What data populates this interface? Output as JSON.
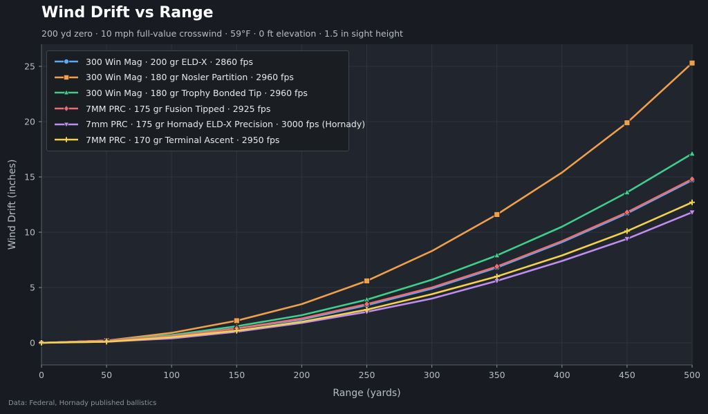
{
  "header": {
    "title": "Wind Drift vs Range",
    "subtitle": "200 yd zero  ·  10 mph full-value crosswind  ·  59°F  ·  0 ft elevation  ·  1.5 in sight height"
  },
  "footer": {
    "source": "Data: Federal, Hornady published ballistics"
  },
  "colors": {
    "background": "#181b21",
    "plot_background": "#21252d",
    "grid": "#2f343d",
    "axis_text": "#b7bcc6"
  },
  "chart_data": {
    "type": "line",
    "title": "Wind Drift vs Range",
    "xlabel": "Range (yards)",
    "ylabel": "Wind Drift (inches)",
    "xlim": [
      0,
      500
    ],
    "ylim": [
      -2,
      27
    ],
    "xticks": [
      0,
      50,
      100,
      150,
      200,
      250,
      300,
      350,
      400,
      450,
      500
    ],
    "yticks": [
      0,
      5,
      10,
      15,
      20,
      25
    ],
    "grid": true,
    "legend_position": "top-left",
    "x": [
      0,
      50,
      100,
      150,
      200,
      250,
      300,
      350,
      400,
      450,
      500
    ],
    "series": [
      {
        "name": "300 Win Mag · 200 gr ELD-X · 2860 fps",
        "color": "#5aa9f5",
        "marker": "circle",
        "values": [
          0,
          0.2,
          0.6,
          1.3,
          2.1,
          3.4,
          4.9,
          6.8,
          9.1,
          11.7,
          14.7
        ]
      },
      {
        "name": "300 Win Mag · 180 gr Nosler Partition · 2960 fps",
        "color": "#f0a04b",
        "marker": "square",
        "values": [
          0,
          0.2,
          0.9,
          2.0,
          3.5,
          5.6,
          8.3,
          11.6,
          15.4,
          19.9,
          25.3
        ]
      },
      {
        "name": "300 Win Mag · 180 gr Trophy Bonded Tip · 2960 fps",
        "color": "#3ecf8e",
        "marker": "triangle",
        "values": [
          0,
          0.2,
          0.7,
          1.5,
          2.5,
          3.9,
          5.7,
          7.9,
          10.5,
          13.6,
          17.1
        ]
      },
      {
        "name": "7MM PRC · 175 gr Fusion Tipped · 2925 fps",
        "color": "#ea6f73",
        "marker": "diamond",
        "values": [
          0,
          0.2,
          0.6,
          1.3,
          2.2,
          3.5,
          5.0,
          6.9,
          9.2,
          11.8,
          14.8
        ]
      },
      {
        "name": "7mm PRC · 175 gr Hornady ELD-X Precision · 3000 fps (Hornady)",
        "color": "#c08ef0",
        "marker": "triangle-down",
        "values": [
          0,
          0.1,
          0.4,
          1.0,
          1.8,
          2.8,
          4.0,
          5.6,
          7.4,
          9.4,
          11.8
        ]
      },
      {
        "name": "7MM PRC · 170 gr Terminal Ascent · 2950 fps",
        "color": "#f2d14c",
        "marker": "plus",
        "values": [
          0,
          0.1,
          0.5,
          1.1,
          1.9,
          3.0,
          4.4,
          6.0,
          7.9,
          10.1,
          12.7
        ]
      }
    ]
  }
}
